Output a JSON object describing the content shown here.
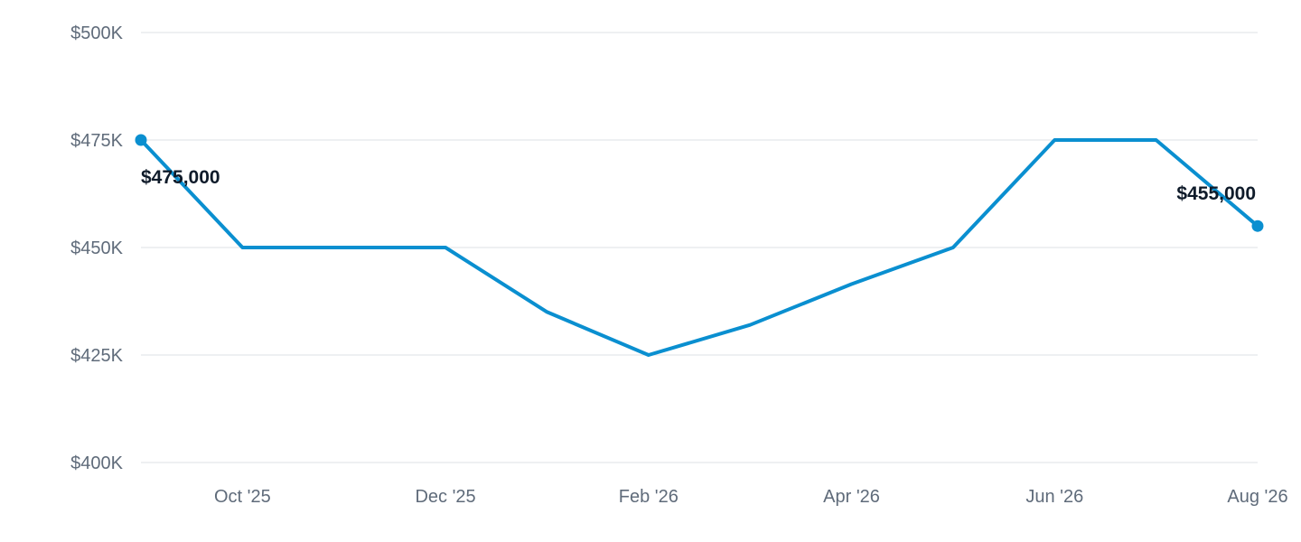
{
  "chart_data": {
    "type": "line",
    "x": [
      "Sep '25",
      "Oct '25",
      "Nov '25",
      "Dec '25",
      "Jan '26",
      "Feb '26",
      "Mar '26",
      "Apr '26",
      "May '26",
      "Jun '26",
      "Jul '26",
      "Aug '26"
    ],
    "series": [
      {
        "values": [
          475000,
          450000,
          450000,
          450000,
          435000,
          425000,
          432000,
          441500,
          450000,
          475000,
          475000,
          455000
        ]
      }
    ],
    "x_tick_labels": [
      "Oct '25",
      "Dec '25",
      "Feb '26",
      "Apr '26",
      "Jun '26",
      "Aug '26"
    ],
    "y_tick_labels": [
      "$400K",
      "$425K",
      "$450K",
      "$475K",
      "$500K"
    ],
    "y_ticks": [
      400000,
      425000,
      450000,
      475000,
      500000
    ],
    "ylim": [
      400000,
      500000
    ],
    "data_labels": [
      {
        "index": 0,
        "text": "$475,000"
      },
      {
        "index": 11,
        "text": "$455,000"
      }
    ],
    "line_color": "#0a8fd0",
    "grid": true
  }
}
